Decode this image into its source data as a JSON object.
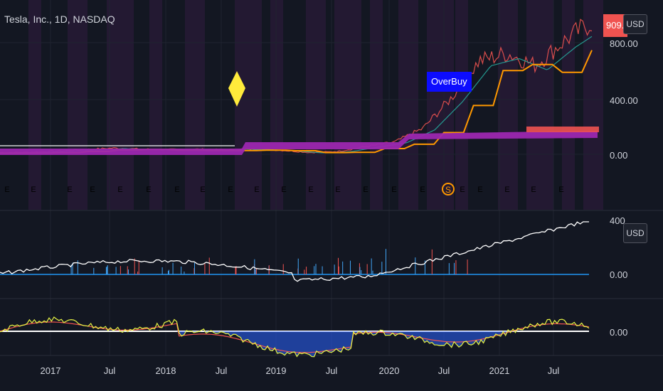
{
  "header": {
    "title": "Tesla, Inc., 1D, NASDAQ"
  },
  "price_tag": {
    "label": "909.",
    "color": "#f05350"
  },
  "unit_buttons": {
    "main": "USD",
    "volume": "USD"
  },
  "annotation": {
    "label": "OverBuy",
    "color": "#0c0cff"
  },
  "signal_marker": {
    "icon": "diamond-icon",
    "color": "#ffeb3b"
  },
  "events": {
    "earnings_letter": "E",
    "split_letter": "S",
    "colors": {
      "negative": "#f05350",
      "positive": "#26a69a",
      "split": "#ff9800"
    },
    "items": [
      "neg",
      "pos",
      "neg",
      "neg",
      "pos",
      "neg",
      "pos",
      "pos",
      "neg",
      "pos",
      "neg",
      "neg",
      "pos",
      "pos",
      "pos",
      "pos",
      "split",
      "pos",
      "neg",
      "pos",
      "pos",
      "pos"
    ]
  },
  "price_axis": [
    "800.00",
    "400.00",
    "0.00"
  ],
  "volume_axis": [
    "400000000",
    "0.00"
  ],
  "oscillator_axis": [
    "0.00"
  ],
  "date_axis": [
    "2017",
    "Jul",
    "2018",
    "Jul",
    "2019",
    "Jul",
    "2020",
    "Jul",
    "2021",
    "Jul"
  ],
  "chart_data": {
    "type": "line",
    "title": "Tesla, Inc., 1D, NASDAQ",
    "x": [
      "2016-09",
      "2016-12",
      "2017-03",
      "2017-06",
      "2017-09",
      "2017-12",
      "2018-03",
      "2018-06",
      "2018-09",
      "2018-12",
      "2019-03",
      "2019-06",
      "2019-09",
      "2019-12",
      "2020-03",
      "2020-06",
      "2020-09",
      "2020-12",
      "2021-03",
      "2021-06",
      "2021-09",
      "2021-10"
    ],
    "series": [
      {
        "values": [
          40,
          42,
          50,
          60,
          70,
          63,
          60,
          62,
          58,
          65,
          55,
          40,
          48,
          80,
          110,
          200,
          400,
          650,
          700,
          620,
          780,
          909
        ]
      }
    ],
    "ylim": [
      -80,
      960
    ],
    "volume_panel": {
      "ylim": [
        -50000000,
        450000000
      ],
      "axis_labels": [
        "400000000",
        "0.00"
      ]
    },
    "oscillator_panel": {
      "axis_labels": [
        "0.00"
      ]
    },
    "last_price_label": "909."
  },
  "colors": {
    "background": "#131722",
    "purple_band": "#9c27b0",
    "orange_line": "#ff9800",
    "volume_line": "#ffffff",
    "baseline": "#2196f3"
  }
}
